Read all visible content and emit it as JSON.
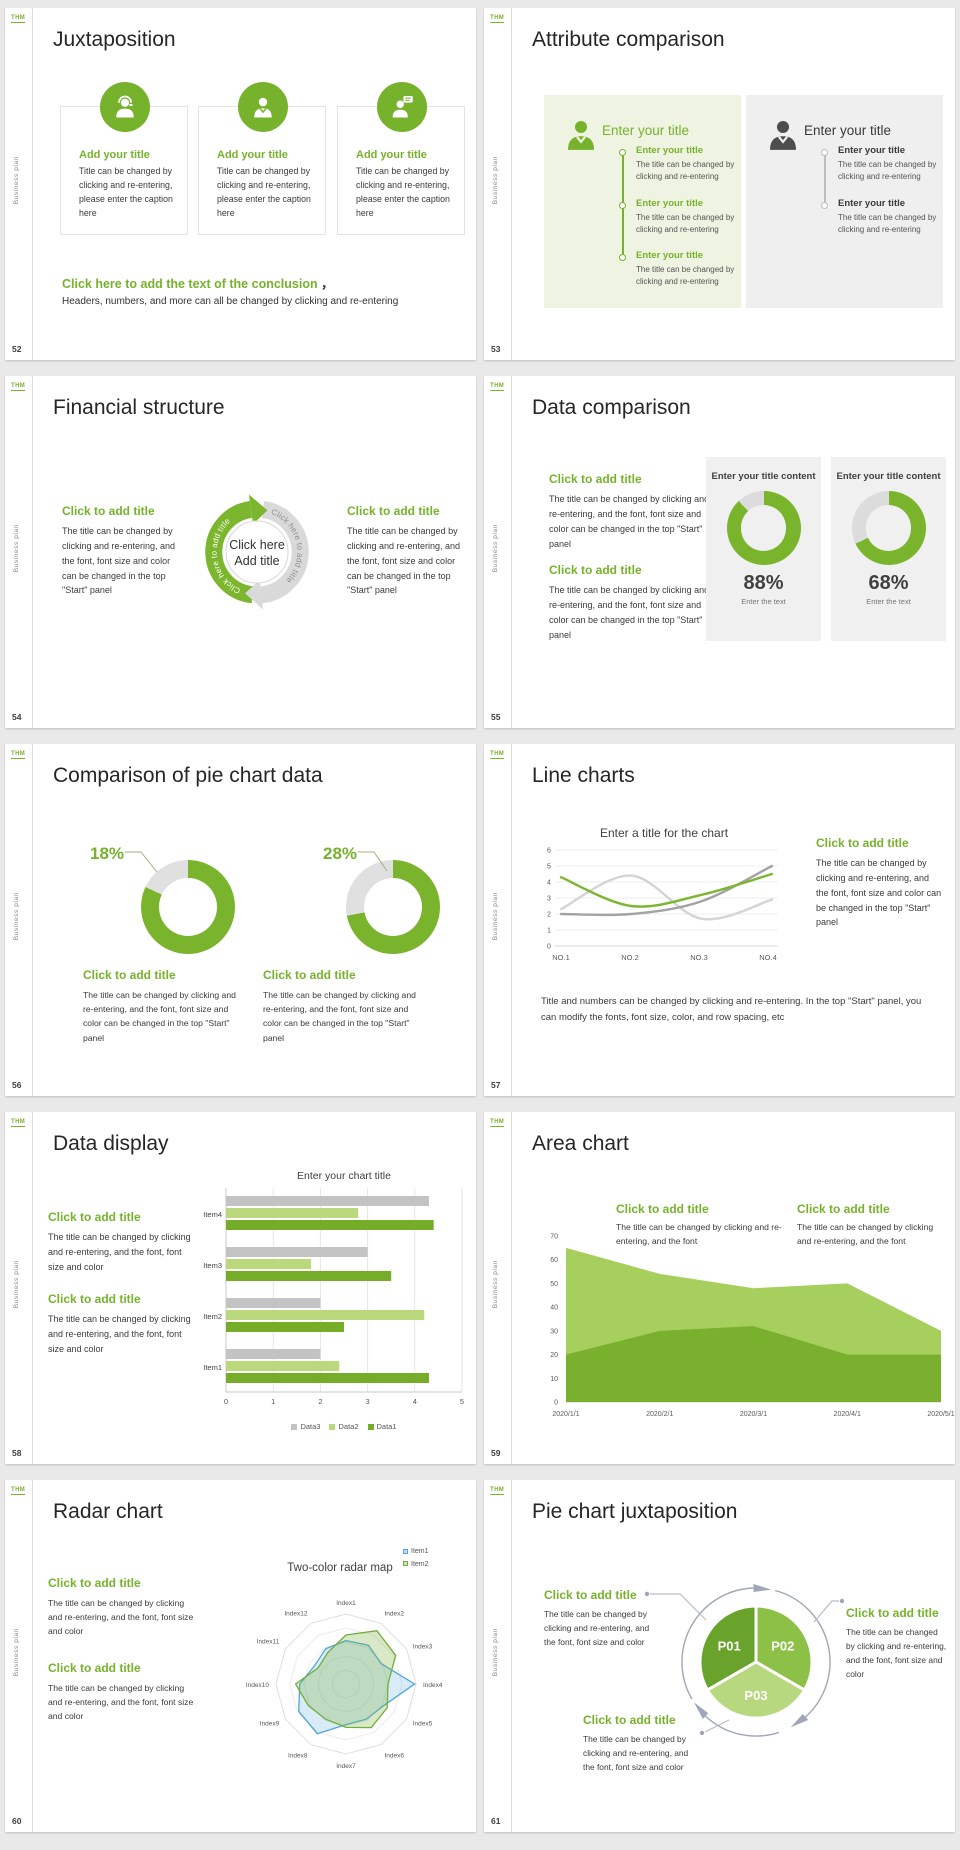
{
  "common": {
    "logo_text": "THM",
    "sidebar_text": "Business plan"
  },
  "slides": [
    {
      "number": "52",
      "title": "Juxtaposition",
      "cards": [
        {
          "icon": "support-agent-icon",
          "title": "Add your title",
          "body": "Title can be changed by clicking and re-entering, please enter the caption here"
        },
        {
          "icon": "businessman-icon",
          "title": "Add your title",
          "body": "Title can be changed by clicking and re-entering, please enter the caption here"
        },
        {
          "icon": "chat-person-icon",
          "title": "Add your title",
          "body": "Title can be changed by clicking and re-entering, please enter the caption here"
        }
      ],
      "conclusion_title": "Click here to add the text of the conclusion",
      "conclusion_comma": "，",
      "conclusion_body": "Headers, numbers, and more can all be changed by clicking and re-entering"
    },
    {
      "number": "53",
      "title": "Attribute comparison",
      "left_panel": {
        "heading": "Enter your title",
        "items": [
          {
            "title": "Enter your title",
            "body": "The title can be changed by clicking and re-entering"
          },
          {
            "title": "Enter your title",
            "body": "The title can be changed by clicking and re-entering"
          },
          {
            "title": "Enter your title",
            "body": "The title can be changed by clicking and re-entering"
          }
        ]
      },
      "right_panel": {
        "heading": "Enter your title",
        "items": [
          {
            "title": "Enter your title",
            "body": "The title can be changed by clicking and re-entering"
          },
          {
            "title": "Enter your title",
            "body": "The title can be changed by clicking and re-entering"
          }
        ]
      }
    },
    {
      "number": "54",
      "title": "Financial structure",
      "left_block": {
        "title": "Click to add title",
        "body": "The title can be changed by clicking and re-entering, and the font, font size and color can be changed in the top \"Start\" panel"
      },
      "right_block": {
        "title": "Click to add title",
        "body": "The title can be changed by clicking and re-entering, and the font, font size and color can be changed in the top \"Start\" panel"
      },
      "center_line1": "Click here",
      "center_line2": "Add title",
      "arc_text_green": "Click here to add title",
      "arc_text_gray": "Click here to add title"
    },
    {
      "number": "55",
      "title": "Data comparison",
      "blocks": [
        {
          "title": "Click to add title",
          "body": "The title can be changed by clicking and re-entering, and the font, font size and color can be changed in the top \"Start\" panel"
        },
        {
          "title": "Click to add title",
          "body": "The title can be changed by clicking and re-entering, and the font, font size and color can be changed in the top \"Start\" panel"
        }
      ],
      "cards": [
        {
          "heading": "Enter your title content",
          "pct": "88%",
          "caption": "Enter the text"
        },
        {
          "heading": "Enter your title content",
          "pct": "68%",
          "caption": "Enter the text"
        }
      ]
    },
    {
      "number": "56",
      "title": "Comparison of pie chart data",
      "groups": [
        {
          "pct": "18%",
          "title": "Click to add title",
          "body": "The title can be changed by clicking and re-entering, and the font, font size and color can be changed in the top \"Start\" panel"
        },
        {
          "pct": "28%",
          "title": "Click to add title",
          "body": "The title can be changed by clicking and re-entering, and the font, font size and color can be changed in the top \"Start\" panel"
        }
      ]
    },
    {
      "number": "57",
      "title": "Line charts",
      "chart_title": "Enter a title for the chart",
      "side_title": "Click to add title",
      "side_body": "The title can be changed by clicking and re-entering, and the font, font size and color can be changed in the top \"Start\" panel",
      "footer": "Title and numbers can be changed by clicking and re-entering. In the top \"Start\" panel, you can modify the fonts, font size, color, and row spacing, etc"
    },
    {
      "number": "58",
      "title": "Data display",
      "chart_title": "Enter your chart title",
      "blocks": [
        {
          "title": "Click to add title",
          "body": "The title can be changed by clicking and re-entering, and the font, font size and color"
        },
        {
          "title": "Click to add title",
          "body": "The title can be changed by clicking and re-entering, and the font, font size and color"
        }
      ]
    },
    {
      "number": "59",
      "title": "Area chart",
      "blocks": [
        {
          "title": "Click to add title",
          "body": "The title can be changed by clicking and re-entering, and the font"
        },
        {
          "title": "Click to add title",
          "body": "The title can be changed by clicking and re-entering, and the font"
        }
      ]
    },
    {
      "number": "60",
      "title": "Radar chart",
      "chart_title": "Two-color radar map",
      "blocks": [
        {
          "title": "Click to add title",
          "body": "The title can be changed by clicking and re-entering, and the font, font size and color"
        },
        {
          "title": "Click to add title",
          "body": "The title can be changed by clicking and re-entering, and the font, font size and color"
        }
      ]
    },
    {
      "number": "61",
      "title": "Pie chart juxtaposition",
      "callouts": [
        {
          "title": "Click to add title",
          "body": "The title can be changed by clicking and re-entering, and the font, font size and color"
        },
        {
          "title": "Click to add title",
          "body": "The title can be changed by clicking and re-entering, and the font, font size and color"
        },
        {
          "title": "Click to add title",
          "body": "The title can be changed by clicking and re-entering, and the font, font size and color"
        }
      ]
    }
  ],
  "chart_data": [
    {
      "id": "data-comparison-donuts",
      "type": "pie",
      "items": [
        {
          "label": "Enter your title content",
          "value": 88
        },
        {
          "label": "Enter your title content",
          "value": 68
        }
      ],
      "colors": {
        "main": "#7ab32c",
        "rest": "#dcdcdc"
      }
    },
    {
      "id": "pie-comparison-donuts",
      "type": "pie",
      "items": [
        {
          "label": "18%",
          "value": 18
        },
        {
          "label": "28%",
          "value": 28
        }
      ],
      "note": "value = highlighted gray share",
      "colors": {
        "main": "#7ab32c",
        "rest": "#e0e0e0"
      }
    },
    {
      "id": "line-chart",
      "type": "line",
      "title": "Enter a title for the chart",
      "x": [
        "NO.1",
        "NO.2",
        "NO.3",
        "NO.4"
      ],
      "ylim": [
        0,
        6
      ],
      "yticks": [
        0,
        1,
        2,
        3,
        4,
        5,
        6
      ],
      "grid": true,
      "series": [
        {
          "name": "green-series",
          "color": "#7cb52e",
          "values": [
            4.3,
            2.5,
            3.2,
            4.5
          ]
        },
        {
          "name": "dark-gray-series",
          "color": "#a3a3a3",
          "values": [
            2.0,
            2.0,
            2.8,
            5.0
          ]
        },
        {
          "name": "light-gray-series",
          "color": "#d4d4d4",
          "values": [
            2.3,
            4.4,
            1.7,
            2.9
          ]
        }
      ]
    },
    {
      "id": "bar-chart",
      "type": "bar",
      "title": "Enter your chart title",
      "orientation": "horizontal",
      "categories": [
        "Item1",
        "Item2",
        "Item3",
        "Item4"
      ],
      "xlim": [
        0,
        5
      ],
      "xticks": [
        0,
        1,
        2,
        3,
        4,
        5
      ],
      "legend": [
        "Data3",
        "Data2",
        "Data1"
      ],
      "legend_position": "bottom",
      "series": [
        {
          "name": "Data1",
          "color": "#76ad28",
          "values": [
            4.3,
            2.5,
            3.5,
            4.4
          ]
        },
        {
          "name": "Data2",
          "color": "#b9d97c",
          "values": [
            2.4,
            4.2,
            1.8,
            2.8
          ]
        },
        {
          "name": "Data3",
          "color": "#c3c3c3",
          "values": [
            2.0,
            2.0,
            3.0,
            4.3
          ]
        }
      ]
    },
    {
      "id": "area-chart",
      "type": "area",
      "x": [
        "2020/1/1",
        "2020/2/1",
        "2020/3/1",
        "2020/4/1",
        "2020/5/1"
      ],
      "ylim": [
        0,
        70
      ],
      "yticks": [
        0,
        10,
        20,
        30,
        40,
        50,
        60,
        70
      ],
      "series": [
        {
          "name": "upper-area",
          "color": "#a6cf5e",
          "values": [
            65,
            54,
            48,
            50,
            30
          ]
        },
        {
          "name": "lower-area",
          "color": "#79b02d",
          "values": [
            20,
            30,
            32,
            20,
            20
          ]
        }
      ]
    },
    {
      "id": "radar-chart",
      "type": "radar",
      "title": "Two-color radar map",
      "axes": [
        "Index1",
        "Index2",
        "Index3",
        "Index4",
        "Index5",
        "Index6",
        "Index7",
        "Index8",
        "Index9",
        "Index10",
        "Index11",
        "Index12"
      ],
      "rlim": [
        0,
        5
      ],
      "legend_position": "top-right",
      "series": [
        {
          "name": "Item1",
          "color": "#4ea6dc",
          "fill": "rgba(78,166,220,0.22)",
          "values": [
            3.1,
            3.2,
            2.9,
            4.9,
            3.1,
            2.9,
            2.9,
            4.1,
            3.9,
            3.3,
            2.6,
            2.9
          ]
        },
        {
          "name": "Item2",
          "color": "#6fae3a",
          "fill": "rgba(128,179,66,0.30)",
          "values": [
            3.5,
            4.4,
            4.1,
            3.0,
            3.4,
            3.6,
            3.1,
            2.9,
            3.1,
            3.6,
            2.3,
            2.6
          ]
        }
      ]
    },
    {
      "id": "pie-juxtaposition",
      "type": "pie",
      "equal_slices": true,
      "items": [
        {
          "label": "P01",
          "color": "#69a32b"
        },
        {
          "label": "P02",
          "color": "#8cc047"
        },
        {
          "label": "P03",
          "color": "#b7d87f"
        }
      ]
    }
  ]
}
